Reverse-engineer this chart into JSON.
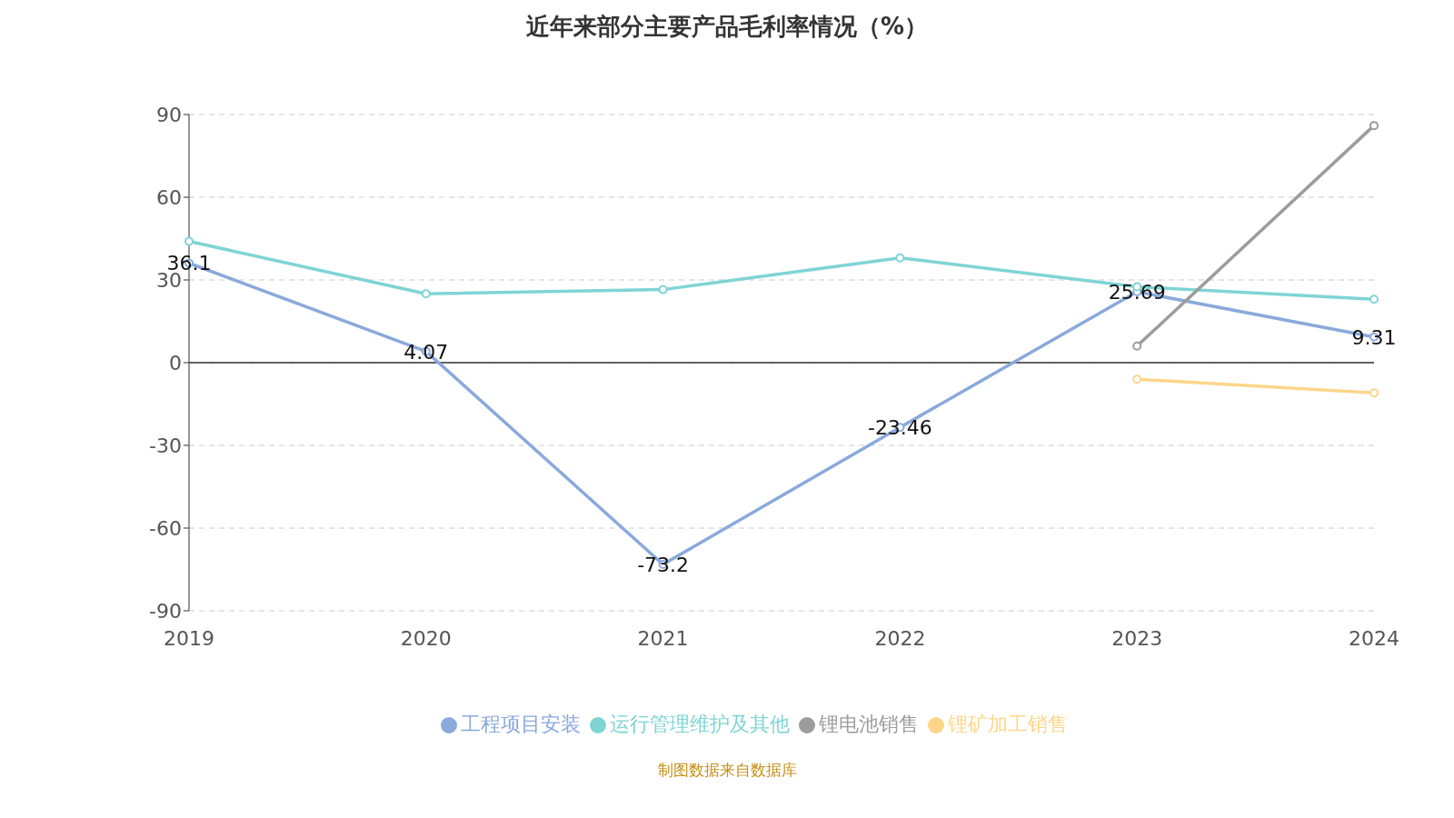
{
  "chart_data": {
    "type": "line",
    "title": "近年来部分主要产品毛利率情况（%）",
    "categories": [
      "2019",
      "2020",
      "2021",
      "2022",
      "2023",
      "2024"
    ],
    "series": [
      {
        "name": "工程项目安装",
        "color": "#8aa9dc",
        "values": [
          36.1,
          4.07,
          -73.2,
          -23.46,
          25.69,
          9.31
        ],
        "value_labels": [
          "36.1",
          "4.07",
          "-73.2",
          "-23.46",
          "25.69",
          "9.31"
        ]
      },
      {
        "name": "锂矿加工销售",
        "color": "#fdd68a",
        "values": [
          null,
          null,
          null,
          null,
          -6,
          -11
        ]
      },
      {
        "name": "运行管理维护及其他",
        "color": "#7fd4d4",
        "values": [
          44,
          25,
          26.5,
          38,
          27.5,
          23
        ]
      },
      {
        "name": "锂电池销售",
        "color": "#9c9c9c",
        "values": [
          null,
          null,
          null,
          null,
          6,
          86
        ]
      }
    ],
    "ylim": [
      -90,
      90
    ],
    "yticks": [
      -90,
      -60,
      -30,
      0,
      30,
      60,
      90
    ],
    "grid": "y",
    "legend": "bottom",
    "marker": "circle",
    "line_style": "solid",
    "annotations": [
      "制图数据来自数据库"
    ]
  }
}
